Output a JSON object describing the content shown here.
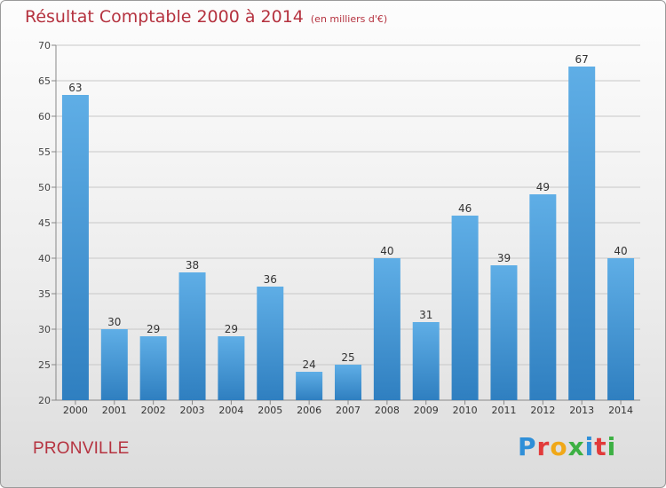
{
  "header": {
    "title": "Résultat Comptable 2000 à 2014",
    "subtitle": "(en milliers d'€)"
  },
  "footer": {
    "commune": "PRONVILLE",
    "logo_text": "Proxiti",
    "logo_colors": [
      "#2f8fd8",
      "#e23a3a",
      "#f0a818",
      "#3cb043",
      "#2f8fd8",
      "#e23a3a",
      "#3cb043"
    ]
  },
  "chart_data": {
    "type": "bar",
    "categories": [
      "2000",
      "2001",
      "2002",
      "2003",
      "2004",
      "2005",
      "2006",
      "2007",
      "2008",
      "2009",
      "2010",
      "2011",
      "2012",
      "2013",
      "2014"
    ],
    "values": [
      63,
      30,
      29,
      38,
      29,
      36,
      24,
      25,
      40,
      31,
      46,
      39,
      49,
      67,
      40
    ],
    "ylim": [
      20,
      70
    ],
    "yticks": [
      20,
      25,
      30,
      35,
      40,
      45,
      50,
      55,
      60,
      65,
      70
    ],
    "grid": true,
    "bar_color_top": "#5faee6",
    "bar_color_bottom": "#2f7fc0",
    "title": "Résultat Comptable 2000 à 2014",
    "xlabel": "",
    "ylabel": ""
  }
}
